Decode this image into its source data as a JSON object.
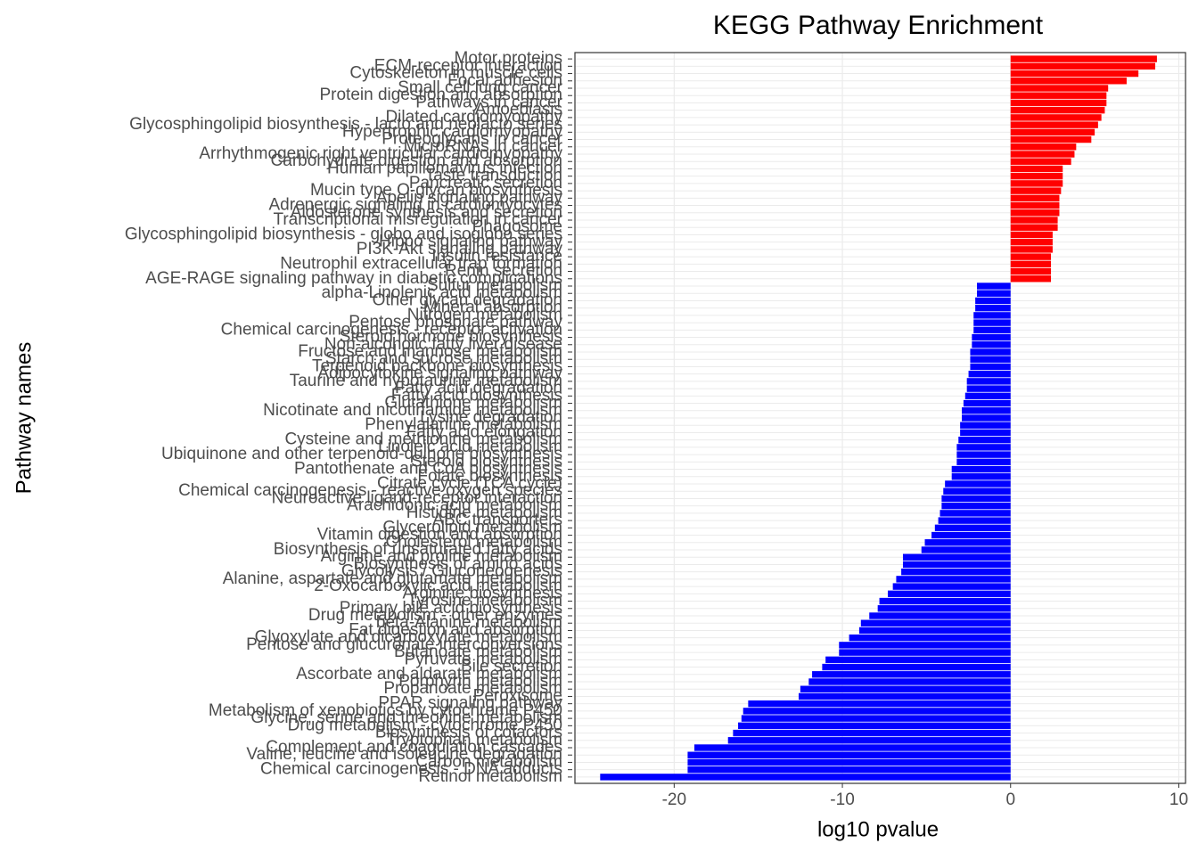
{
  "chart_data": {
    "type": "barh",
    "title": "KEGG Pathway Enrichment",
    "x_label": "log10 pvalue",
    "y_label": "Pathway names",
    "positive_color": "#ff0000",
    "negative_color": "#0000ff",
    "xlim": [
      -25.9,
      10.4
    ],
    "xticks": [
      -20,
      -10,
      0,
      10
    ],
    "grid": true,
    "categories": [
      "Motor proteins",
      "ECM-receptor interaction",
      "Cytoskeleton in muscle cells",
      "Focal adhesion",
      "Small cell lung cancer",
      "Protein digestion and absorption",
      "Pathways in cancer",
      "Amoebiasis",
      "Dilated cardiomyopathy",
      "Glycosphingolipid biosynthesis - lacto and neolacto series",
      "Hypertrophic cardiomyopathy",
      "Proteoglycans in cancer",
      "MicroRNAs in cancer",
      "Arrhythmogenic right ventricular cardiomyopathy",
      "Carbohydrate digestion and absorption",
      "Human papillomavirus infection",
      "Taste transduction",
      "Pancreatic secretion",
      "Mucin type O-glycan biosynthesis",
      "Apelin signaling pathway",
      "Adrenergic signaling in cardiomyocytes",
      "Aldosterone synthesis and secretion",
      "Transcriptional misregulation in cancer",
      "Phagosome",
      "Glycosphingolipid biosynthesis - globo and isoglobo series",
      "Hippo signaling pathway",
      "PI3K-Akt signaling pathway",
      "Insulin resistance",
      "Neutrophil extracellular trap formation",
      "Renin secretion",
      "AGE-RAGE signaling pathway in diabetic complications",
      "Sulfur metabolism",
      "alpha-Linolenic acid metabolism",
      "Other glycan degradation",
      "Mineral absorption",
      "Nitrogen metabolism",
      "Pentose phosphate pathway",
      "Chemical carcinogenesis - receptor activation",
      "Steroid hormone biosynthesis",
      "Non-alcoholic fatty liver disease",
      "Fructose and mannose metabolism",
      "Starch and sucrose metabolism",
      "Terpenoid backbone biosynthesis",
      "Adipocytokine signaling pathway",
      "Taurine and hypotaurine metabolism",
      "Fatty acid degradation",
      "Fatty acid biosynthesis",
      "Glutathione metabolism",
      "Nicotinate and nicotinamide metabolism",
      "Lysine degradation",
      "Phenylalanine metabolism",
      "Fatty acid elongation",
      "Cysteine and methionine metabolism",
      "Linoleic acid metabolism",
      "Ubiquinone and other terpenoid-quinone biosynthesis",
      "Steroid biosynthesis",
      "Pantothenate and CoA biosynthesis",
      "Folate biosynthesis",
      "Citrate cycle (TCA cycle)",
      "Chemical carcinogenesis - reactive oxygen species",
      "Neuroactive ligand-receptor interaction",
      "Arachidonic acid metabolism",
      "Histidine metabolism",
      "ABC transporters",
      "Glycerolipid metabolism",
      "Vitamin digestion and absorption",
      "Cholesterol metabolism",
      "Biosynthesis of unsaturated fatty acids",
      "Arginine and proline metabolism",
      "Biosynthesis of amino acids",
      "Glycolysis / Gluconeogenesis",
      "Alanine, aspartate and glutamate metabolism",
      "2-Oxocarboxylic acid metabolism",
      "Arginine biosynthesis",
      "Tyrosine metabolism",
      "Primary bile acid biosynthesis",
      "Drug metabolism - other enzymes",
      "beta-Alanine metabolism",
      "Fat digestion and absorption",
      "Glyoxylate and dicarboxylate metabolism",
      "Pentose and glucuronate interconversions",
      "Butanoate metabolism",
      "Pyruvate metabolism",
      "Bile secretion",
      "Ascorbate and aldarate metabolism",
      "Porphyrin metabolism",
      "Propanoate metabolism",
      "Peroxisome",
      "PPAR signaling pathway",
      "Metabolism of xenobiotics by cytochrome P450",
      "Glycine, serine and threonine metabolism",
      "Drug metabolism - cytochrome P450",
      "Biosynthesis of cofactors",
      "Tryptophan metabolism",
      "Complement and coagulation cascades",
      "Valine, leucine and isoleucine degradation",
      "Carbon metabolism",
      "Chemical carcinogenesis - DNA adducts",
      "Retinol metabolism"
    ],
    "values": [
      8.7,
      8.6,
      7.6,
      6.9,
      5.8,
      5.7,
      5.7,
      5.6,
      5.4,
      5.2,
      5.0,
      4.8,
      3.9,
      3.8,
      3.6,
      3.1,
      3.1,
      3.1,
      3.0,
      2.9,
      2.9,
      2.9,
      2.8,
      2.8,
      2.5,
      2.5,
      2.5,
      2.4,
      2.4,
      2.4,
      2.4,
      -2.0,
      -2.0,
      -2.1,
      -2.1,
      -2.2,
      -2.2,
      -2.2,
      -2.3,
      -2.3,
      -2.4,
      -2.4,
      -2.4,
      -2.5,
      -2.6,
      -2.6,
      -2.7,
      -2.8,
      -2.9,
      -2.9,
      -3.0,
      -3.0,
      -3.1,
      -3.2,
      -3.2,
      -3.2,
      -3.5,
      -3.5,
      -3.9,
      -4.0,
      -4.1,
      -4.1,
      -4.2,
      -4.3,
      -4.5,
      -4.7,
      -5.1,
      -5.3,
      -6.4,
      -6.4,
      -6.5,
      -6.8,
      -7.0,
      -7.3,
      -7.8,
      -7.9,
      -8.4,
      -8.9,
      -9.0,
      -9.6,
      -10.2,
      -10.2,
      -11.0,
      -11.2,
      -11.8,
      -12.0,
      -12.5,
      -12.6,
      -15.6,
      -15.9,
      -16.0,
      -16.2,
      -16.5,
      -16.8,
      -18.8,
      -19.2,
      -19.2,
      -19.2,
      -24.4
    ]
  }
}
